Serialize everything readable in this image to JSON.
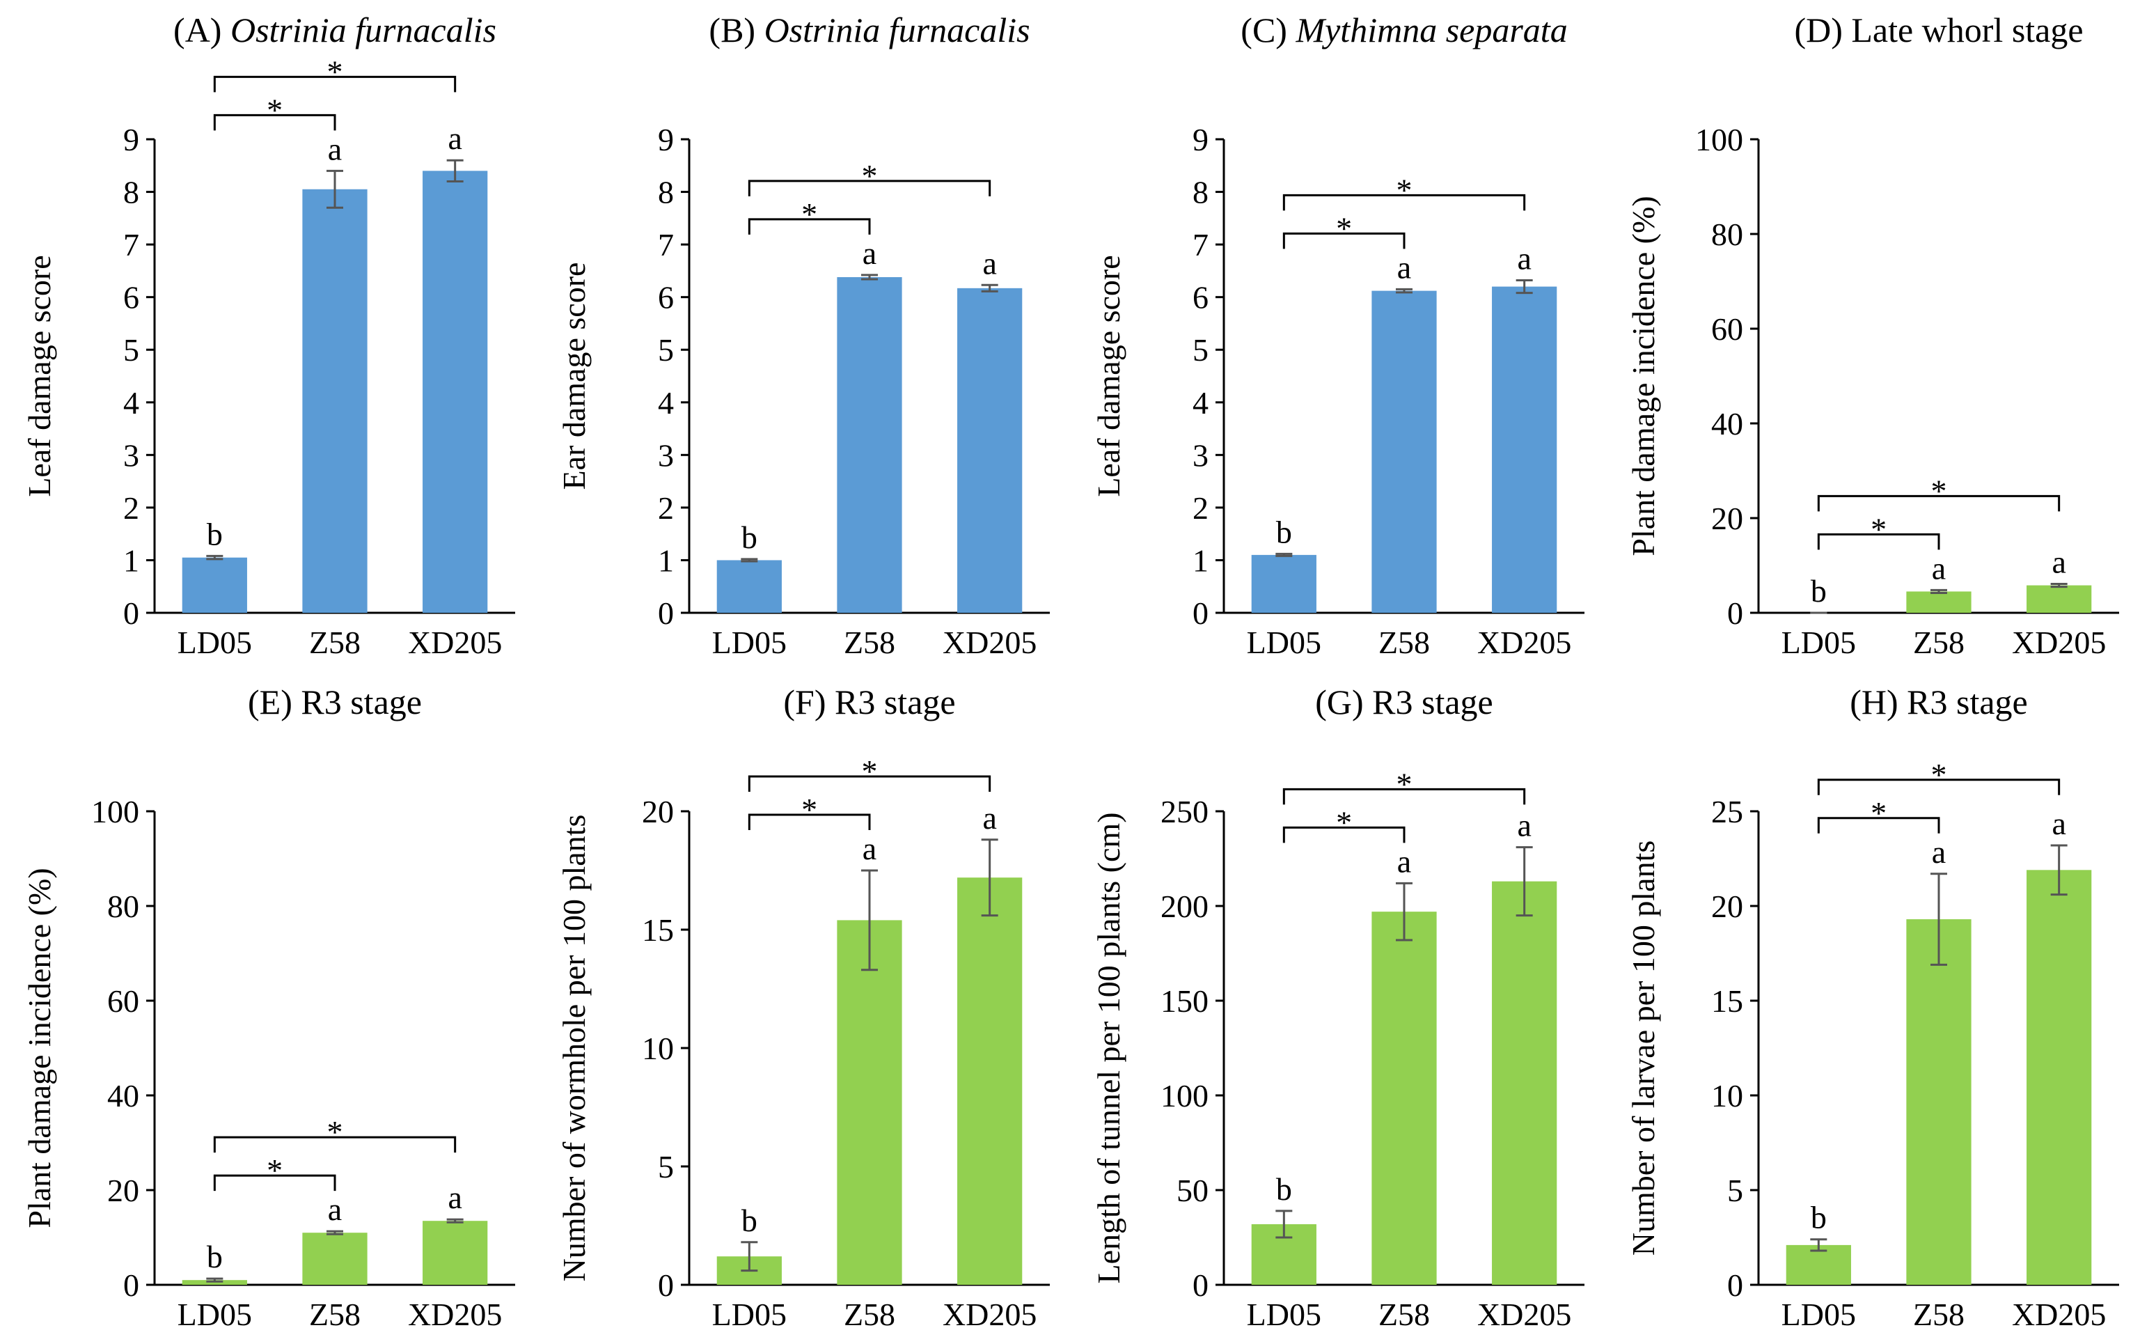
{
  "chart_data": [
    {
      "type": "bar",
      "panel": "(A)",
      "title": "Ostrinia furnacalis",
      "title_italic": true,
      "ylabel": "Leaf damage score",
      "categories": [
        "LD05",
        "Z58",
        "XD205"
      ],
      "values": [
        1.05,
        8.05,
        8.4
      ],
      "errors": [
        0.03,
        0.35,
        0.2
      ],
      "letters": [
        "b",
        "a",
        "a"
      ],
      "color": "#5b9bd5",
      "ylim": [
        0,
        9
      ],
      "yticks": [
        0,
        1,
        2,
        3,
        4,
        5,
        6,
        7,
        8,
        9
      ],
      "comparisons": [
        {
          "from": 0,
          "to": 1,
          "label": "*"
        },
        {
          "from": 0,
          "to": 2,
          "label": "*"
        }
      ]
    },
    {
      "type": "bar",
      "panel": "(B)",
      "title": "Ostrinia furnacalis",
      "title_italic": true,
      "ylabel": "Ear damage score",
      "categories": [
        "LD05",
        "Z58",
        "XD205"
      ],
      "values": [
        1.0,
        6.38,
        6.17
      ],
      "errors": [
        0.02,
        0.04,
        0.06
      ],
      "letters": [
        "b",
        "a",
        "a"
      ],
      "color": "#5b9bd5",
      "ylim": [
        0,
        9
      ],
      "yticks": [
        0,
        1,
        2,
        3,
        4,
        5,
        6,
        7,
        8,
        9
      ],
      "comparisons": [
        {
          "from": 0,
          "to": 1,
          "label": "*"
        },
        {
          "from": 0,
          "to": 2,
          "label": "*"
        }
      ]
    },
    {
      "type": "bar",
      "panel": "(C)",
      "title": "Mythimna separata",
      "title_italic": true,
      "ylabel": "Leaf damage score",
      "categories": [
        "LD05",
        "Z58",
        "XD205"
      ],
      "values": [
        1.1,
        6.12,
        6.2
      ],
      "errors": [
        0.02,
        0.03,
        0.12
      ],
      "letters": [
        "b",
        "a",
        "a"
      ],
      "color": "#5b9bd5",
      "ylim": [
        0,
        9
      ],
      "yticks": [
        0,
        1,
        2,
        3,
        4,
        5,
        6,
        7,
        8,
        9
      ],
      "comparisons": [
        {
          "from": 0,
          "to": 1,
          "label": "*"
        },
        {
          "from": 0,
          "to": 2,
          "label": "*"
        }
      ]
    },
    {
      "type": "bar",
      "panel": "(D)",
      "title": "Late whorl stage",
      "title_italic": false,
      "ylabel": "Plant damage incidence (%)",
      "categories": [
        "LD05",
        "Z58",
        "XD205"
      ],
      "values": [
        0,
        4.5,
        5.8
      ],
      "errors": [
        0,
        0.3,
        0.3
      ],
      "letters": [
        "b",
        "a",
        "a"
      ],
      "color": "#92d050",
      "ylim": [
        0,
        100
      ],
      "yticks": [
        0,
        20,
        40,
        60,
        80,
        100
      ],
      "comparisons": [
        {
          "from": 0,
          "to": 1,
          "label": "*"
        },
        {
          "from": 0,
          "to": 2,
          "label": "*"
        }
      ]
    },
    {
      "type": "bar",
      "panel": "(E)",
      "title": "R3 stage",
      "title_italic": false,
      "ylabel": "Plant damage incidence (%)",
      "categories": [
        "LD05",
        "Z58",
        "XD205"
      ],
      "values": [
        1,
        11,
        13.5
      ],
      "errors": [
        0.3,
        0.3,
        0.3
      ],
      "letters": [
        "b",
        "a",
        "a"
      ],
      "color": "#92d050",
      "ylim": [
        0,
        100
      ],
      "yticks": [
        0,
        20,
        40,
        60,
        80,
        100
      ],
      "comparisons": [
        {
          "from": 0,
          "to": 1,
          "label": "*"
        },
        {
          "from": 0,
          "to": 2,
          "label": "*"
        }
      ]
    },
    {
      "type": "bar",
      "panel": "(F)",
      "title": "R3 stage",
      "title_italic": false,
      "ylabel": "Number of wormhole per 100 plants",
      "categories": [
        "LD05",
        "Z58",
        "XD205"
      ],
      "values": [
        1.2,
        15.4,
        17.2
      ],
      "errors": [
        0.6,
        2.1,
        1.6
      ],
      "letters": [
        "b",
        "a",
        "a"
      ],
      "color": "#92d050",
      "ylim": [
        0,
        20
      ],
      "yticks": [
        0,
        5,
        10,
        15,
        20
      ],
      "comparisons": [
        {
          "from": 0,
          "to": 1,
          "label": "*"
        },
        {
          "from": 0,
          "to": 2,
          "label": "*"
        }
      ]
    },
    {
      "type": "bar",
      "panel": "(G)",
      "title": "R3 stage",
      "title_italic": false,
      "ylabel": "Length of tunnel per 100 plants (cm)",
      "categories": [
        "LD05",
        "Z58",
        "XD205"
      ],
      "values": [
        32,
        197,
        213
      ],
      "errors": [
        7,
        15,
        18
      ],
      "letters": [
        "b",
        "a",
        "a"
      ],
      "color": "#92d050",
      "ylim": [
        0,
        250
      ],
      "yticks": [
        0,
        50,
        100,
        150,
        200,
        250
      ],
      "comparisons": [
        {
          "from": 0,
          "to": 1,
          "label": "*"
        },
        {
          "from": 0,
          "to": 2,
          "label": "*"
        }
      ]
    },
    {
      "type": "bar",
      "panel": "(H)",
      "title": "R3 stage",
      "title_italic": false,
      "ylabel": "Number of larvae per 100 plants",
      "categories": [
        "LD05",
        "Z58",
        "XD205"
      ],
      "values": [
        2.1,
        19.3,
        21.9
      ],
      "errors": [
        0.3,
        2.4,
        1.3
      ],
      "letters": [
        "b",
        "a",
        "a"
      ],
      "color": "#92d050",
      "ylim": [
        0,
        25
      ],
      "yticks": [
        0,
        5,
        10,
        15,
        20,
        25
      ],
      "comparisons": [
        {
          "from": 0,
          "to": 1,
          "label": "*"
        },
        {
          "from": 0,
          "to": 2,
          "label": "*"
        }
      ]
    }
  ]
}
